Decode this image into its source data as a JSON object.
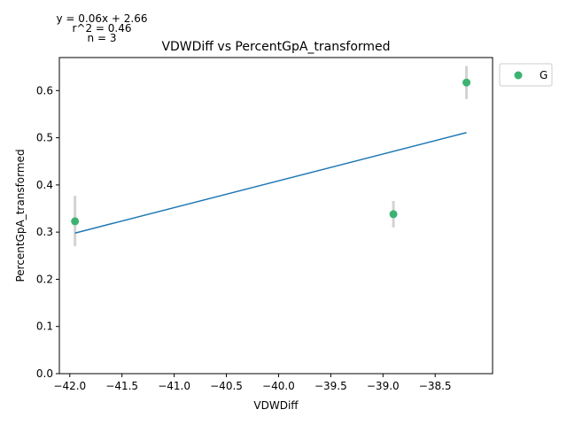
{
  "chart_data": {
    "type": "scatter",
    "title": "VDWDiff vs PercentGpA_transformed",
    "xlabel": "VDWDiff",
    "ylabel": "PercentGpA_transformed",
    "xlim": [
      -42.1,
      -37.95
    ],
    "ylim": [
      0.0,
      0.67
    ],
    "x_ticks": [
      -42.0,
      -41.5,
      -41.0,
      -40.5,
      -40.0,
      -39.5,
      -39.0,
      -38.5
    ],
    "x_tick_labels": [
      "−42.0",
      "−41.5",
      "−41.0",
      "−40.5",
      "−40.0",
      "−39.5",
      "−39.0",
      "−38.5"
    ],
    "y_ticks": [
      0.0,
      0.1,
      0.2,
      0.3,
      0.4,
      0.5,
      0.6
    ],
    "y_tick_labels": [
      "0.0",
      "0.1",
      "0.2",
      "0.3",
      "0.4",
      "0.5",
      "0.6"
    ],
    "grid": false,
    "legend_position": "outside-top-right",
    "series": [
      {
        "name": "G",
        "color": "#3cb371",
        "points": [
          {
            "x": -41.95,
            "y": 0.323,
            "err_low": 0.27,
            "err_high": 0.377
          },
          {
            "x": -38.9,
            "y": 0.338,
            "err_low": 0.31,
            "err_high": 0.366
          },
          {
            "x": -38.2,
            "y": 0.617,
            "err_low": 0.582,
            "err_high": 0.652
          }
        ]
      }
    ],
    "fit_line": {
      "color": "#1f77b4",
      "x": [
        -41.95,
        -38.2
      ],
      "y": [
        0.298,
        0.511
      ]
    },
    "errorbar_color": "#d3d3d3",
    "annotations": [
      "y = 0.06x + 2.66",
      "r^2 = 0.46",
      "n = 3"
    ]
  }
}
